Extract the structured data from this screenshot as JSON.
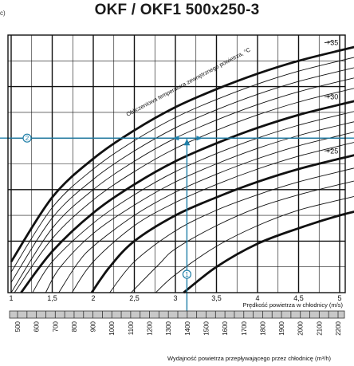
{
  "page": {
    "title": "OKF / OKF1 500x250-3",
    "corner_label": "c)"
  },
  "chart_data": {
    "type": "line",
    "title": "OKF / OKF1 500x250-3",
    "xlabel": "Prędkość powietrza w chłodnicy (m/s)",
    "x2label": "Wydajność powietrza przepływającego przez chłodnicę (m³/h)",
    "curve_label": "Obliczeniowa temperatura zewnętrznego powietrza, °C",
    "xlim": [
      1,
      5.4
    ],
    "x_ticks": [
      1,
      1.5,
      2,
      2.5,
      3,
      3.5,
      4,
      4.5,
      5
    ],
    "x_tick_labels": [
      "1",
      "1,5",
      "2",
      "2,5",
      "3",
      "3,5",
      "4",
      "4,5",
      "5"
    ],
    "flow_ticks": [
      500,
      600,
      700,
      800,
      900,
      1000,
      1100,
      1200,
      1300,
      1400,
      1500,
      1600,
      1700,
      1800,
      1900,
      2000,
      2100,
      2200
    ],
    "flow_tick_labels": [
      "500",
      "600",
      "700",
      "800",
      "900",
      "1000",
      "1100",
      "1200",
      "1300",
      "1400",
      "1500",
      "1600",
      "1700",
      "1800",
      "1900",
      "2000",
      "2100",
      "2200"
    ],
    "ylim": [
      0,
      1
    ],
    "grid": true,
    "temperature_labels": [
      "+35",
      "+30",
      "+25"
    ],
    "series": [
      {
        "name": "+35",
        "bold": true,
        "x": [
          1.0,
          1.5,
          2.0,
          2.5,
          3.0,
          3.5,
          4.0,
          4.5,
          5.0,
          5.4
        ],
        "y": [
          0.12,
          0.37,
          0.52,
          0.63,
          0.72,
          0.79,
          0.85,
          0.9,
          0.94,
          0.97
        ]
      },
      {
        "name": "",
        "bold": false,
        "x": [
          1.0,
          1.5,
          2.0,
          2.5,
          3.0,
          3.5,
          4.0,
          4.5,
          5.0,
          5.4
        ],
        "y": [
          0.08,
          0.33,
          0.48,
          0.59,
          0.68,
          0.75,
          0.81,
          0.86,
          0.9,
          0.93
        ]
      },
      {
        "name": "",
        "bold": false,
        "x": [
          1.0,
          1.5,
          2.0,
          2.5,
          3.0,
          3.5,
          4.0,
          4.5,
          5.0,
          5.4
        ],
        "y": [
          0.04,
          0.29,
          0.44,
          0.55,
          0.64,
          0.71,
          0.77,
          0.82,
          0.86,
          0.89
        ]
      },
      {
        "name": "",
        "bold": false,
        "x": [
          1.0,
          1.5,
          2.0,
          2.5,
          3.0,
          3.5,
          4.0,
          4.5,
          5.0,
          5.4
        ],
        "y": [
          0.0,
          0.25,
          0.4,
          0.51,
          0.6,
          0.67,
          0.73,
          0.78,
          0.82,
          0.85
        ]
      },
      {
        "name": "",
        "bold": false,
        "x": [
          1.04,
          1.5,
          2.0,
          2.5,
          3.0,
          3.5,
          4.0,
          4.5,
          5.0,
          5.4
        ],
        "y": [
          0.0,
          0.21,
          0.36,
          0.47,
          0.56,
          0.63,
          0.69,
          0.74,
          0.78,
          0.81
        ]
      },
      {
        "name": "+30",
        "bold": true,
        "x": [
          1.12,
          1.5,
          2.0,
          2.5,
          3.0,
          3.5,
          4.0,
          4.5,
          5.0,
          5.4
        ],
        "y": [
          0.0,
          0.16,
          0.31,
          0.42,
          0.51,
          0.58,
          0.64,
          0.69,
          0.73,
          0.76
        ]
      },
      {
        "name": "",
        "bold": false,
        "x": [
          1.26,
          1.5,
          2.0,
          2.5,
          3.0,
          3.5,
          4.0,
          4.5,
          5.0,
          5.4
        ],
        "y": [
          0.0,
          0.12,
          0.27,
          0.38,
          0.47,
          0.54,
          0.6,
          0.65,
          0.69,
          0.72
        ]
      },
      {
        "name": "",
        "bold": false,
        "x": [
          1.42,
          1.6,
          2.0,
          2.5,
          3.0,
          3.5,
          4.0,
          4.5,
          5.0,
          5.4
        ],
        "y": [
          0.0,
          0.1,
          0.23,
          0.34,
          0.43,
          0.5,
          0.56,
          0.61,
          0.65,
          0.68
        ]
      },
      {
        "name": "",
        "bold": false,
        "x": [
          1.58,
          1.8,
          2.0,
          2.5,
          3.0,
          3.5,
          4.0,
          4.5,
          5.0,
          5.4
        ],
        "y": [
          0.0,
          0.11,
          0.18,
          0.3,
          0.39,
          0.46,
          0.52,
          0.57,
          0.61,
          0.64
        ]
      },
      {
        "name": "",
        "bold": false,
        "x": [
          1.74,
          2.0,
          2.5,
          3.0,
          3.5,
          4.0,
          4.5,
          5.0,
          5.4
        ],
        "y": [
          0.0,
          0.12,
          0.26,
          0.35,
          0.42,
          0.48,
          0.53,
          0.57,
          0.6
        ]
      },
      {
        "name": "+25",
        "bold": true,
        "x": [
          1.98,
          2.2,
          2.5,
          3.0,
          3.5,
          4.0,
          4.5,
          5.0,
          5.4
        ],
        "y": [
          0.0,
          0.1,
          0.2,
          0.3,
          0.37,
          0.43,
          0.48,
          0.52,
          0.55
        ]
      },
      {
        "name": "",
        "bold": false,
        "x": [
          2.2,
          2.5,
          3.0,
          3.5,
          4.0,
          4.5,
          5.0,
          5.4
        ],
        "y": [
          0.0,
          0.12,
          0.24,
          0.32,
          0.38,
          0.43,
          0.47,
          0.5
        ]
      },
      {
        "name": "",
        "bold": false,
        "x": [
          2.46,
          2.8,
          3.0,
          3.5,
          4.0,
          4.5,
          5.0,
          5.4
        ],
        "y": [
          0.0,
          0.11,
          0.17,
          0.26,
          0.33,
          0.38,
          0.42,
          0.45
        ]
      },
      {
        "name": "",
        "bold": false,
        "x": [
          2.76,
          3.0,
          3.5,
          4.0,
          4.5,
          5.0,
          5.4
        ],
        "y": [
          0.0,
          0.07,
          0.18,
          0.26,
          0.32,
          0.36,
          0.39
        ]
      },
      {
        "name": "",
        "bold": true,
        "x": [
          3.1,
          3.5,
          4.0,
          4.5,
          5.0,
          5.4
        ],
        "y": [
          0.0,
          0.1,
          0.19,
          0.25,
          0.3,
          0.33
        ]
      }
    ],
    "markers": [
      {
        "label": "1",
        "x": 3.14
      },
      {
        "label": "2",
        "y": 0.6
      }
    ],
    "accent_color": "#1f7fa8"
  }
}
